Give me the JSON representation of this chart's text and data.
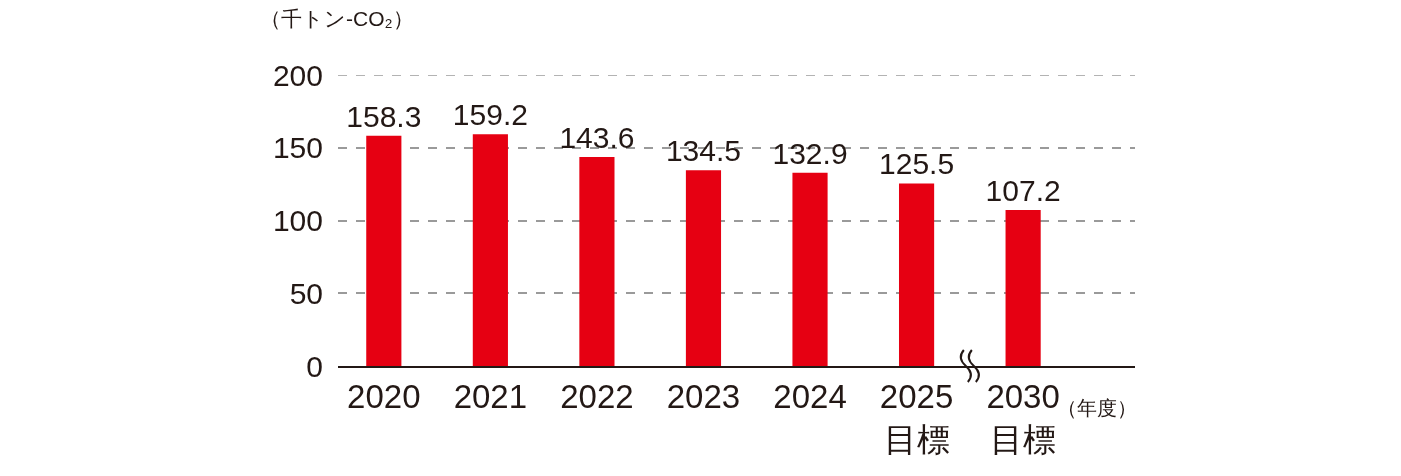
{
  "chart_data": {
    "type": "bar",
    "ylabel": "（千トン-CO₂）",
    "xlabel": "（年度）",
    "categories": [
      "2020",
      "2021",
      "2022",
      "2023",
      "2024",
      "2025\n目標",
      "2030\n目標"
    ],
    "values": [
      158.3,
      159.2,
      143.6,
      134.5,
      132.9,
      125.5,
      107.2
    ],
    "color": "#e60012",
    "ylim": [
      0,
      200
    ],
    "yticks": [
      0,
      50,
      100,
      150,
      200
    ],
    "grid": "y",
    "data_labels": true
  }
}
